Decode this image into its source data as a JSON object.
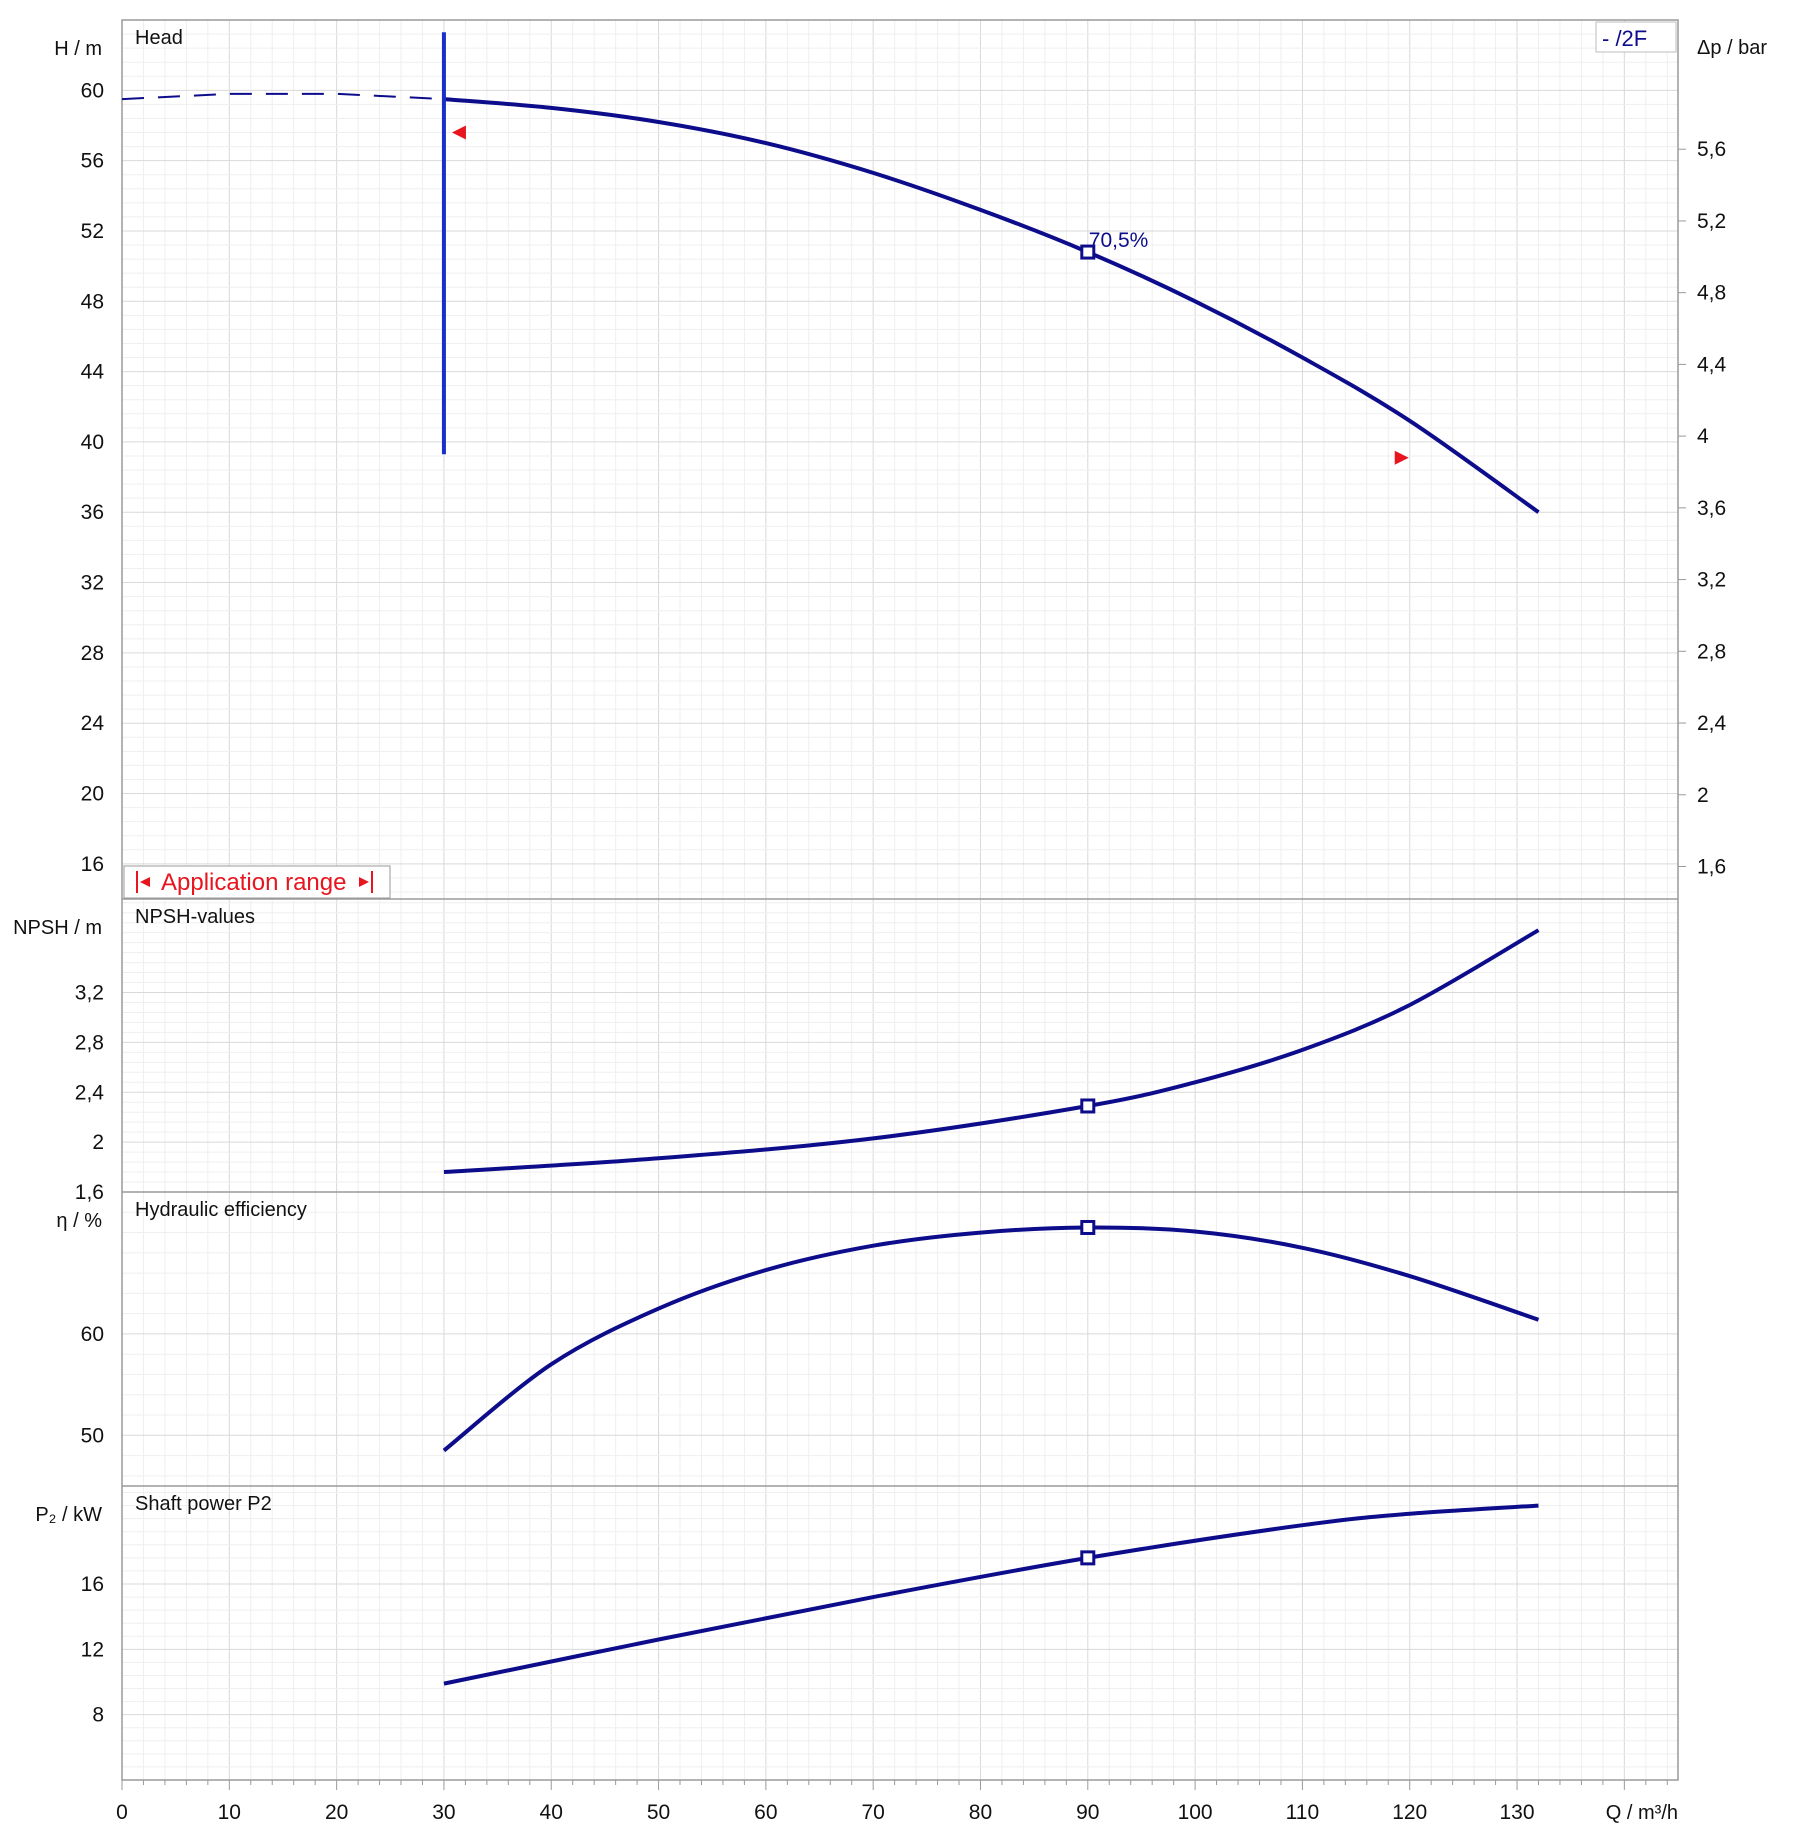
{
  "chart_data": {
    "type": "line",
    "x_axis": {
      "label": "Q / m³/h",
      "range": [
        0,
        145
      ],
      "ticks": [
        0,
        10,
        20,
        30,
        40,
        50,
        60,
        70,
        80,
        90,
        100,
        110,
        120,
        130
      ]
    },
    "legend": {
      "text": "-   /2F",
      "placement": "top-right"
    },
    "duty_point": {
      "x": 90,
      "efficiency_label": "70,5%"
    },
    "panels": [
      {
        "id": "head",
        "title": "Head",
        "ylabel": "H / m",
        "ylim": [
          14,
          64
        ],
        "yticks": [
          16,
          20,
          24,
          28,
          32,
          36,
          40,
          44,
          48,
          52,
          56,
          60
        ],
        "y2label": "Δp / bar",
        "y2ticks": [
          "1,6",
          "2",
          "2,4",
          "2,8",
          "3,2",
          "3,6",
          "4",
          "4,4",
          "4,8",
          "5,2",
          "5,6"
        ],
        "series": [
          {
            "x": [
              30,
              40,
              50,
              60,
              70,
              80,
              90,
              100,
              110,
              120,
              132
            ],
            "y": [
              59.5,
              59.0,
              58.2,
              57.0,
              55.3,
              53.2,
              50.8,
              48.0,
              44.8,
              41.2,
              36.0
            ]
          }
        ],
        "dashed": {
          "x": [
            0,
            10,
            15,
            20,
            30
          ],
          "y": [
            59.5,
            59.8,
            59.8,
            59.8,
            59.5
          ]
        },
        "vertical_line": {
          "x": 30,
          "y": [
            39.3,
            63.3
          ]
        },
        "range_markers": [
          {
            "x": 30,
            "y": 57.6,
            "dir": "left"
          },
          {
            "x": 120,
            "y": 39.1,
            "dir": "right"
          }
        ],
        "application_range_label": "Application range"
      },
      {
        "id": "npsh",
        "title": "NPSH-values",
        "ylabel": "NPSH / m",
        "ylim": [
          1.6,
          3.95
        ],
        "yticks": [
          "1,6",
          "2",
          "2,4",
          "2,8",
          "3,2"
        ],
        "ytick_values": [
          1.6,
          2.0,
          2.4,
          2.8,
          3.2
        ],
        "series": [
          {
            "x": [
              30,
              50,
              70,
              90,
              100,
              110,
              120,
              132
            ],
            "y": [
              1.76,
              1.87,
              2.03,
              2.29,
              2.48,
              2.74,
              3.1,
              3.7
            ]
          }
        ]
      },
      {
        "id": "eta",
        "title": "Hydraulic efficiency",
        "ylabel": "η / %",
        "ylim": [
          45,
          74
        ],
        "yticks": [
          50,
          60
        ],
        "series": [
          {
            "x": [
              30,
              40,
              50,
              60,
              70,
              80,
              90,
              100,
              110,
              120,
              132
            ],
            "y": [
              48.5,
              57.0,
              62.5,
              66.3,
              68.7,
              70.0,
              70.5,
              70.1,
              68.5,
              65.7,
              61.4
            ]
          }
        ]
      },
      {
        "id": "power",
        "title": "Shaft power P2",
        "ylabel": "P₂ / kW",
        "ylim": [
          4,
          22
        ],
        "yticks": [
          8,
          12,
          16
        ],
        "series": [
          {
            "x": [
              30,
              50,
              70,
              90,
              110,
              120,
              132
            ],
            "y": [
              9.9,
              12.6,
              15.2,
              17.6,
              19.6,
              20.3,
              20.8
            ]
          }
        ]
      }
    ]
  }
}
